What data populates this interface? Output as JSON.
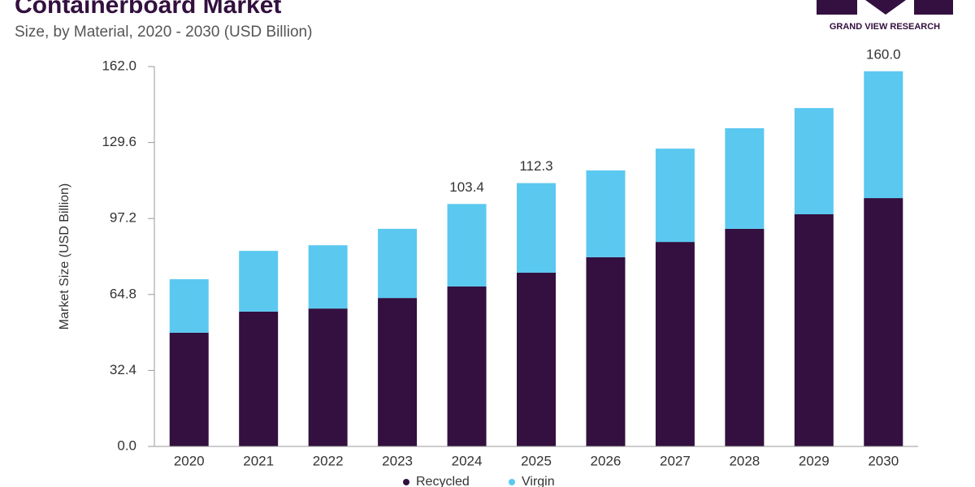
{
  "chart_data": {
    "type": "stacked-bar",
    "title": "Containerboard Market",
    "subtitle": "Size, by Material, 2020 - 2030 (USD Billion)",
    "brand": "GRAND VIEW RESEARCH",
    "y_label": "Market Size (USD Billion)",
    "categories": [
      "2020",
      "2021",
      "2022",
      "2023",
      "2024",
      "2025",
      "2026",
      "2027",
      "2028",
      "2029",
      "2030"
    ],
    "series": [
      {
        "name": "Recycled",
        "color": "#33103f",
        "values": [
          48.5,
          57.5,
          58.8,
          63.3,
          68.2,
          74.1,
          80.7,
          87.2,
          92.8,
          99.0,
          105.9
        ]
      },
      {
        "name": "Virgin",
        "color": "#5bc8f0",
        "values": [
          22.8,
          25.9,
          27.0,
          29.5,
          35.2,
          38.2,
          37.0,
          39.8,
          42.9,
          45.3,
          54.1
        ]
      }
    ],
    "totals": {
      "values": [
        null,
        null,
        null,
        null,
        103.4,
        112.3,
        null,
        null,
        null,
        null,
        160
      ],
      "value_labels": [
        null,
        null,
        null,
        null,
        "103.4",
        "112.3",
        null,
        null,
        null,
        null,
        "160.0"
      ]
    },
    "ylim": [
      0,
      162
    ],
    "yticks": [
      {
        "value": 0,
        "label": "0.0"
      },
      32.4,
      64.8,
      97.2,
      129.6,
      {
        "value": 162,
        "label": "162.0"
      }
    ],
    "grid": false
  }
}
